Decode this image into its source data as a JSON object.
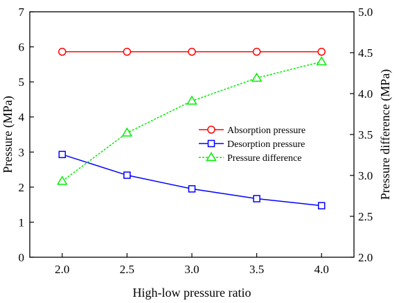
{
  "chart_data": {
    "type": "line",
    "xlabel": "High-low pressure ratio",
    "ylabel_left": "Pressure (MPa)",
    "ylabel_right": "Pressure difference (MPa)",
    "x": [
      2.0,
      2.5,
      3.0,
      3.5,
      4.0
    ],
    "x_ticks": [
      "2.0",
      "2.5",
      "3.0",
      "3.5",
      "4.0"
    ],
    "xlim": [
      1.75,
      4.25
    ],
    "ylim_left": [
      0,
      7
    ],
    "y_ticks_left": [
      "0",
      "1",
      "2",
      "3",
      "4",
      "5",
      "6",
      "7"
    ],
    "ylim_right": [
      2.0,
      5.0
    ],
    "y_ticks_right": [
      "2.0",
      "2.5",
      "3.0",
      "3.5",
      "4.0",
      "4.5",
      "5.0"
    ],
    "grid": false,
    "legend_placement": "center-right",
    "series": [
      {
        "name": "Absorption pressure",
        "axis": "left",
        "color": "#ff0000",
        "marker": "circle",
        "line_style": "solid",
        "values": [
          5.86,
          5.86,
          5.86,
          5.86,
          5.86
        ]
      },
      {
        "name": "Desorption pressure",
        "axis": "left",
        "color": "#0000ff",
        "marker": "square",
        "line_style": "solid",
        "values": [
          2.93,
          2.34,
          1.95,
          1.67,
          1.47
        ]
      },
      {
        "name": "Pressure difference",
        "axis": "right",
        "color": "#00ee00",
        "marker": "triangle",
        "line_style": "dotted",
        "values": [
          2.93,
          3.52,
          3.91,
          4.19,
          4.39
        ]
      }
    ]
  }
}
